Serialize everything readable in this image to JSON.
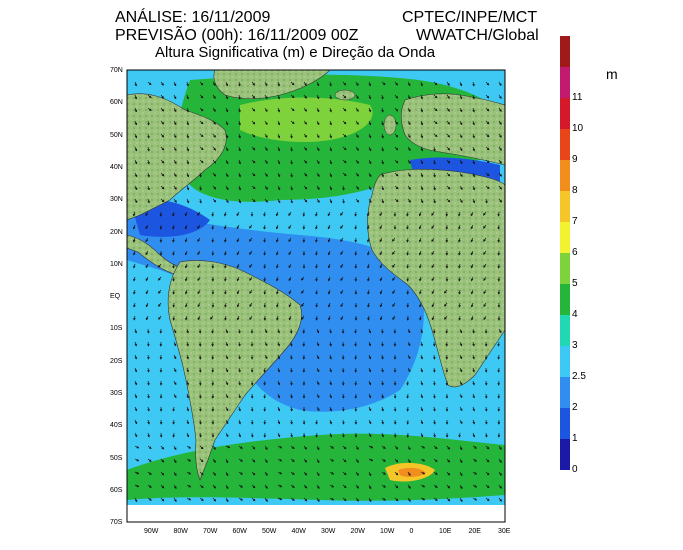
{
  "header": {
    "analysis": "ANÁLISE: 16/11/2009",
    "org": "CPTEC/INPE/MCT",
    "forecast": "PREVISÃO (00h): 16/11/2009 00Z",
    "model": "WWATCH/Global",
    "subtitle": "Altura Significativa (m) e Direção da Onda"
  },
  "axes": {
    "lat_labels": [
      "70N",
      "60N",
      "50N",
      "40N",
      "30N",
      "20N",
      "10N",
      "EQ",
      "10S",
      "20S",
      "30S",
      "40S",
      "50S",
      "60S",
      "70S"
    ],
    "lon_labels": [
      "90W",
      "80W",
      "70W",
      "60W",
      "50W",
      "40W",
      "30W",
      "20W",
      "10W",
      "0",
      "10E",
      "20E",
      "30E"
    ]
  },
  "legend": {
    "unit": "m",
    "levels": [
      {
        "label": "0",
        "color": "#1a1aa6"
      },
      {
        "label": "1",
        "color": "#1c56e0"
      },
      {
        "label": "2",
        "color": "#2f8ef0"
      },
      {
        "label": "2.5",
        "color": "#3ec9f5"
      },
      {
        "label": "3",
        "color": "#21d7b4"
      },
      {
        "label": "4",
        "color": "#24b53a"
      },
      {
        "label": "5",
        "color": "#7ed23b"
      },
      {
        "label": "6",
        "color": "#f2f230"
      },
      {
        "label": "7",
        "color": "#f5c627"
      },
      {
        "label": "8",
        "color": "#f28e1e"
      },
      {
        "label": "9",
        "color": "#e8461a"
      },
      {
        "label": "10",
        "color": "#d41a2a"
      },
      {
        "label": "11",
        "color": "#c21a6e"
      },
      {
        "label": "",
        "color": "#a01a1a"
      }
    ]
  },
  "colors": {
    "land": "#9ac27a",
    "land_dark": "#6f9e58",
    "ocean_low": "#2f8ef0",
    "ocean_mid": "#3ec9f5",
    "ocean_high": "#24b53a"
  }
}
